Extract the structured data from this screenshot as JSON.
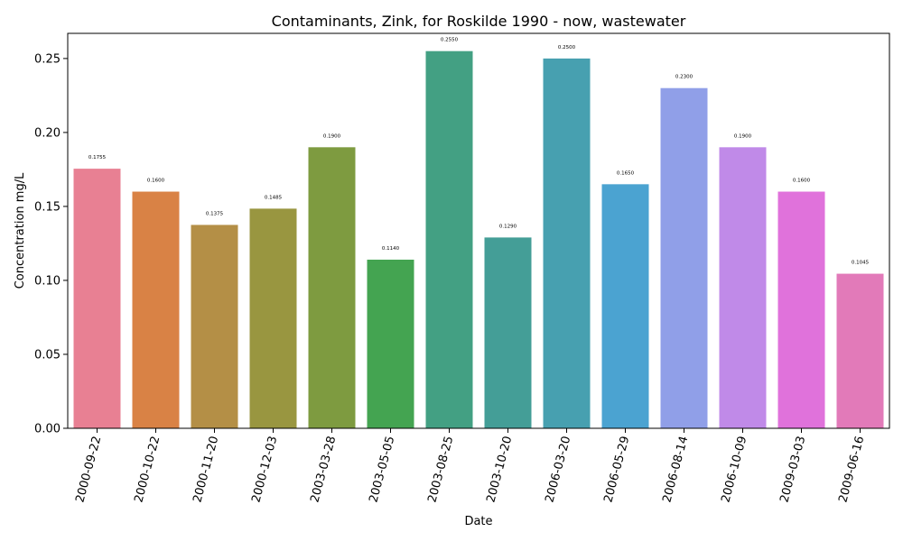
{
  "chart_data": {
    "type": "bar",
    "title": "Contaminants, Zink, for Roskilde 1990 - now, wastewater",
    "xlabel": "Date",
    "ylabel": "Concentration mg/L",
    "ylim": [
      0,
      0.267
    ],
    "yticks": [
      "0.00",
      "0.05",
      "0.10",
      "0.15",
      "0.20",
      "0.25"
    ],
    "grid": false,
    "legend": "none",
    "categories": [
      "2000-09-22",
      "2000-10-22",
      "2000-11-20",
      "2000-12-03",
      "2003-03-28",
      "2003-05-05",
      "2003-08-25",
      "2003-10-20",
      "2006-03-20",
      "2006-05-29",
      "2006-08-14",
      "2006-10-09",
      "2009-03-03",
      "2009-06-16"
    ],
    "values": [
      0.1755,
      0.16,
      0.1375,
      0.1485,
      0.19,
      0.114,
      0.255,
      0.129,
      0.25,
      0.165,
      0.23,
      0.19,
      0.16,
      0.1045
    ],
    "value_labels": [
      "0.1755",
      "0.1600",
      "0.1375",
      "0.1485",
      "0.1900",
      "0.1140",
      "0.2550",
      "0.1290",
      "0.2500",
      "0.1650",
      "0.2300",
      "0.1900",
      "0.1600",
      "0.1045"
    ],
    "colors": [
      "#e88093",
      "#d98245",
      "#b48f46",
      "#999640",
      "#7e9b40",
      "#44a451",
      "#43a083",
      "#449e97",
      "#47a0b0",
      "#4ba3d1",
      "#909fe8",
      "#c08ae8",
      "#e072db",
      "#e27ab9"
    ]
  }
}
